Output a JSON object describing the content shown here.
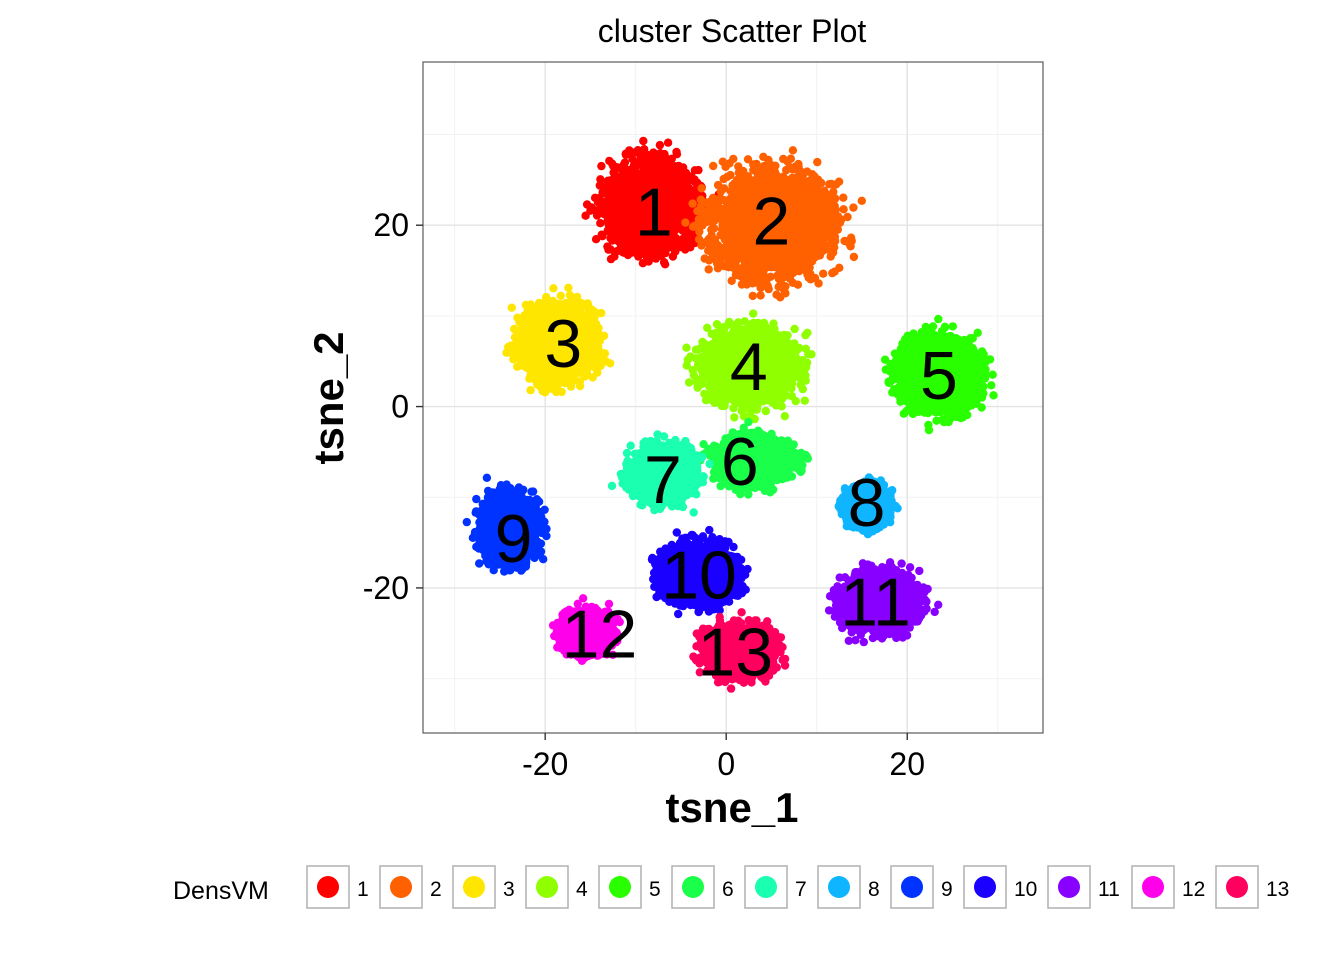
{
  "chart_data": {
    "type": "scatter",
    "title": "cluster Scatter Plot",
    "xlabel": "tsne_1",
    "ylabel": "tsne_2",
    "xlim": [
      -33.5,
      35
    ],
    "ylim": [
      -36,
      38
    ],
    "x_ticks": [
      -20,
      0,
      20
    ],
    "y_ticks": [
      -20,
      0,
      20
    ],
    "x_tick_labels": [
      "-20",
      "0",
      "20"
    ],
    "y_tick_labels": [
      "-20",
      "0",
      "20"
    ],
    "grid": true,
    "legend": {
      "title": "DensVM",
      "placement": "bottom"
    },
    "series": [
      {
        "name": "1",
        "color": "#FF0000",
        "center": [
          -8.5,
          22
        ],
        "spread": [
          5.5,
          5.5
        ]
      },
      {
        "name": "2",
        "color": "#FF6000",
        "center": [
          5,
          20
        ],
        "spread": [
          7.5,
          6.5
        ]
      },
      {
        "name": "3",
        "color": "#FFE600",
        "center": [
          -18.5,
          7
        ],
        "spread": [
          4.5,
          4.5
        ]
      },
      {
        "name": "4",
        "color": "#90FF00",
        "center": [
          2.5,
          4.5
        ],
        "spread": [
          5.5,
          4.5
        ]
      },
      {
        "name": "5",
        "color": "#2AFF00",
        "center": [
          23.5,
          3.5
        ],
        "spread": [
          5,
          4.5
        ]
      },
      {
        "name": "6",
        "color": "#1AFF4A",
        "center": [
          3,
          -6
        ],
        "spread": [
          4.5,
          2.8
        ]
      },
      {
        "name": "7",
        "color": "#1AFFB0",
        "center": [
          -7,
          -7.5
        ],
        "spread": [
          4,
          3
        ]
      },
      {
        "name": "8",
        "color": "#10B5FF",
        "center": [
          15.5,
          -11
        ],
        "spread": [
          2.5,
          2.5
        ]
      },
      {
        "name": "9",
        "color": "#0033FF",
        "center": [
          -24,
          -13.5
        ],
        "spread": [
          3.5,
          4
        ]
      },
      {
        "name": "10",
        "color": "#1A00FF",
        "center": [
          -3,
          -18.5
        ],
        "spread": [
          4.5,
          3.5
        ]
      },
      {
        "name": "11",
        "color": "#8800FF",
        "center": [
          17,
          -21.5
        ],
        "spread": [
          4.5,
          3.5
        ]
      },
      {
        "name": "12",
        "color": "#FF00EA",
        "center": [
          -15.5,
          -25
        ],
        "spread": [
          3,
          2.5
        ]
      },
      {
        "name": "13",
        "color": "#FF005F",
        "center": [
          1.5,
          -27
        ],
        "spread": [
          4,
          3
        ]
      }
    ],
    "annotations": [
      {
        "text": "1",
        "x": -8,
        "y": 21.5
      },
      {
        "text": "2",
        "x": 5,
        "y": 20.5
      },
      {
        "text": "3",
        "x": -18,
        "y": 7
      },
      {
        "text": "4",
        "x": 2.5,
        "y": 4.5
      },
      {
        "text": "5",
        "x": 23.5,
        "y": 3.5
      },
      {
        "text": "6",
        "x": 1.5,
        "y": -6
      },
      {
        "text": "7",
        "x": -7,
        "y": -8
      },
      {
        "text": "8",
        "x": 15.5,
        "y": -10.5
      },
      {
        "text": "9",
        "x": -23.5,
        "y": -14.5
      },
      {
        "text": "10",
        "x": -3,
        "y": -18.5
      },
      {
        "text": "11",
        "x": 16.5,
        "y": -21.5
      },
      {
        "text": "12",
        "x": -14,
        "y": -25
      },
      {
        "text": "13",
        "x": 1,
        "y": -27
      }
    ]
  }
}
